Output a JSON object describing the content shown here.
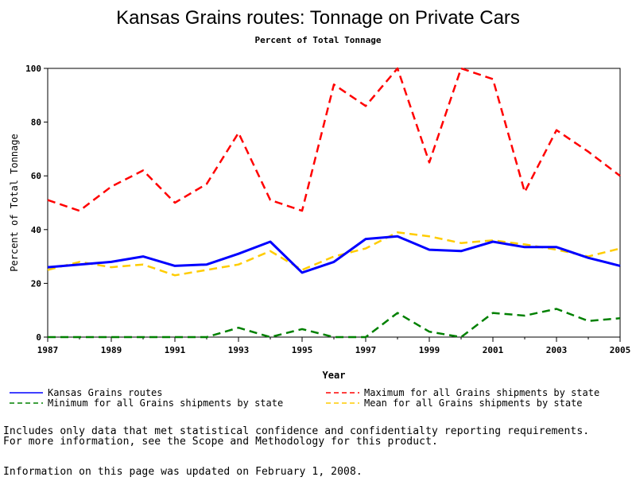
{
  "chart_data": {
    "type": "line",
    "title": "Kansas Grains routes: Tonnage on Private Cars",
    "subtitle": "Percent of Total Tonnage",
    "xlabel": "Year",
    "ylabel": "Percent of Total Tonnage",
    "xlim": [
      1987,
      2005
    ],
    "ylim": [
      0,
      100
    ],
    "x_ticks": [
      1987,
      1989,
      1991,
      1993,
      1995,
      1997,
      1999,
      2001,
      2003,
      2005
    ],
    "y_ticks": [
      0,
      20,
      40,
      60,
      80,
      100
    ],
    "x": [
      1987,
      1988,
      1989,
      1990,
      1991,
      1992,
      1993,
      1994,
      1995,
      1996,
      1997,
      1998,
      1999,
      2000,
      2001,
      2002,
      2003,
      2004,
      2005
    ],
    "series": [
      {
        "name": "Kansas Grains routes",
        "color": "#0000ff",
        "style": "solid",
        "values": [
          26,
          27,
          28,
          30,
          26.5,
          27,
          31,
          35.5,
          24,
          28,
          36.5,
          37.5,
          32.5,
          32,
          35.5,
          33.5,
          33.5,
          29.5,
          26.5
        ]
      },
      {
        "name": "Maximum for all Grains shipments by state",
        "color": "#ff0000",
        "style": "dashed",
        "values": [
          51,
          47,
          56,
          62,
          50,
          57,
          76,
          51,
          47,
          94,
          86,
          100,
          65,
          100,
          96,
          54,
          77,
          69,
          60
        ]
      },
      {
        "name": "Minimum for all Grains shipments by state",
        "color": "#008000",
        "style": "dashed",
        "values": [
          0,
          0,
          0,
          0,
          0,
          0,
          3.5,
          0,
          3,
          0,
          0,
          9,
          2,
          0,
          9,
          8,
          10.5,
          6,
          7
        ]
      },
      {
        "name": "Mean for all Grains shipments by state",
        "color": "#ffcc00",
        "style": "dashed",
        "values": [
          25,
          28,
          26,
          27,
          23,
          25,
          27,
          32,
          25,
          30,
          33,
          39,
          37.5,
          35,
          36,
          34.5,
          32.5,
          30,
          33
        ]
      }
    ],
    "grid": false,
    "legend_position": "bottom"
  },
  "notes": {
    "line1": "Includes only data that met statistical confidence and confidentialty reporting requirements.",
    "line2": "For more information, see the Scope and Methodology for this product.",
    "updated": "Information on this page was updated on February 1, 2008."
  }
}
